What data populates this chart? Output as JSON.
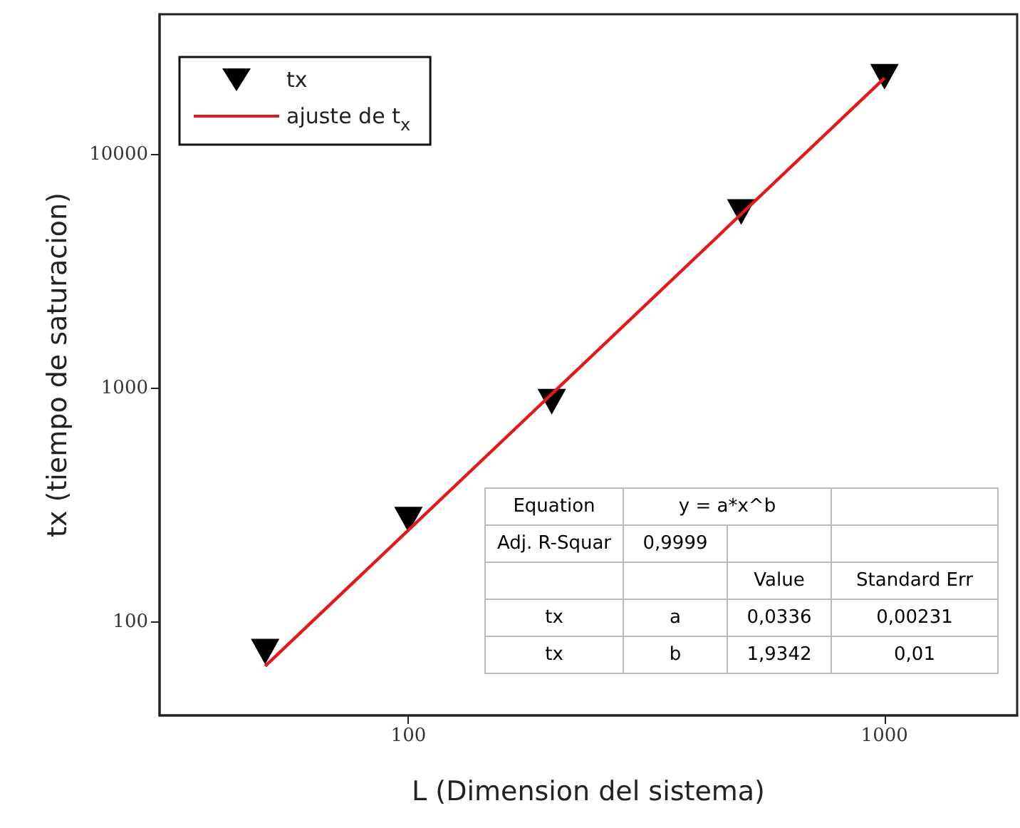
{
  "chart_data": {
    "type": "scatter",
    "xlabel": "L (Dimension del sistema)",
    "ylabel": "tx (tiempo de saturacion)",
    "x": [
      50,
      100,
      200,
      500,
      1000
    ],
    "series": [
      {
        "name": "tx",
        "color": "#000000",
        "marker": "triangle",
        "values": [
          75,
          275,
          880,
          5700,
          21600
        ]
      },
      {
        "name": "ajuste de t$_{x}$",
        "type": "line",
        "color": "#e31a1c",
        "marker": "none",
        "line_style": "solid",
        "x": [
          50,
          1000
        ],
        "values": [
          65,
          21330
        ]
      }
    ],
    "log": "xy",
    "xlim": [
      30,
      1900
    ],
    "ylim": [
      40,
      40000
    ],
    "xticks": [
      100,
      1000
    ],
    "yticks": [
      100,
      1000,
      10000
    ],
    "grid": false,
    "legend": "top left",
    "annotations": [
      "Equation",
      "y = a*x^b",
      "Adj. R-Squar",
      "0,9999",
      "Value",
      "Standard Err",
      "tx",
      "a",
      "0,0336",
      "0,00231",
      "tx",
      "b",
      "1,9342",
      "0,01"
    ]
  }
}
